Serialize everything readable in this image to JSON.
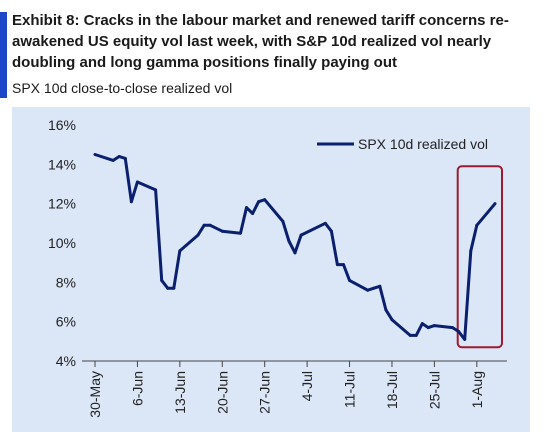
{
  "header": {
    "title": "Exhibit 8: Cracks in the labour market and renewed tariff concerns re-awakened US equity vol last week, with S&P 10d realized vol nearly doubling and long gamma positions finally paying out",
    "subtitle": "SPX 10d close-to-close realized vol"
  },
  "colors": {
    "accent": "#1d47c9",
    "line": "#0a1f6e",
    "highlight": "#9b1b30",
    "background": "#dbe6f7"
  },
  "chart_data": {
    "type": "line",
    "title": "",
    "xlabel": "",
    "ylabel": "",
    "ylim": [
      4,
      16
    ],
    "yticks": [
      "4%",
      "6%",
      "8%",
      "10%",
      "12%",
      "14%",
      "16%"
    ],
    "xticks": [
      "30-May",
      "6-Jun",
      "13-Jun",
      "20-Jun",
      "27-Jun",
      "4-Jul",
      "11-Jul",
      "18-Jul",
      "25-Jul",
      "1-Aug"
    ],
    "legend_position": "top-right",
    "grid": false,
    "series": [
      {
        "name": "SPX 10d realized vol",
        "x": [
          "30-May",
          "2-Jun",
          "3-Jun",
          "4-Jun",
          "5-Jun",
          "6-Jun",
          "9-Jun",
          "10-Jun",
          "11-Jun",
          "12-Jun",
          "13-Jun",
          "16-Jun",
          "17-Jun",
          "18-Jun",
          "20-Jun",
          "23-Jun",
          "24-Jun",
          "25-Jun",
          "26-Jun",
          "27-Jun",
          "30-Jun",
          "1-Jul",
          "2-Jul",
          "3-Jul",
          "7-Jul",
          "8-Jul",
          "9-Jul",
          "10-Jul",
          "11-Jul",
          "14-Jul",
          "15-Jul",
          "16-Jul",
          "17-Jul",
          "18-Jul",
          "21-Jul",
          "22-Jul",
          "23-Jul",
          "24-Jul",
          "25-Jul",
          "28-Jul",
          "29-Jul",
          "30-Jul",
          "31-Jul",
          "1-Aug",
          "4-Aug"
        ],
        "values": [
          14.5,
          14.2,
          14.4,
          14.3,
          12.1,
          13.1,
          12.7,
          8.1,
          7.7,
          7.7,
          9.6,
          10.4,
          10.9,
          10.9,
          10.6,
          10.5,
          11.8,
          11.5,
          12.1,
          12.2,
          11.1,
          10.1,
          9.5,
          10.4,
          11.0,
          10.6,
          8.9,
          8.9,
          8.1,
          7.6,
          7.7,
          7.8,
          6.6,
          6.1,
          5.3,
          5.3,
          5.9,
          5.7,
          5.8,
          5.7,
          5.5,
          5.1,
          9.6,
          10.9,
          12.0
        ]
      }
    ],
    "highlight_box": {
      "x_from": "30-Jul",
      "x_to": "4-Aug"
    }
  }
}
